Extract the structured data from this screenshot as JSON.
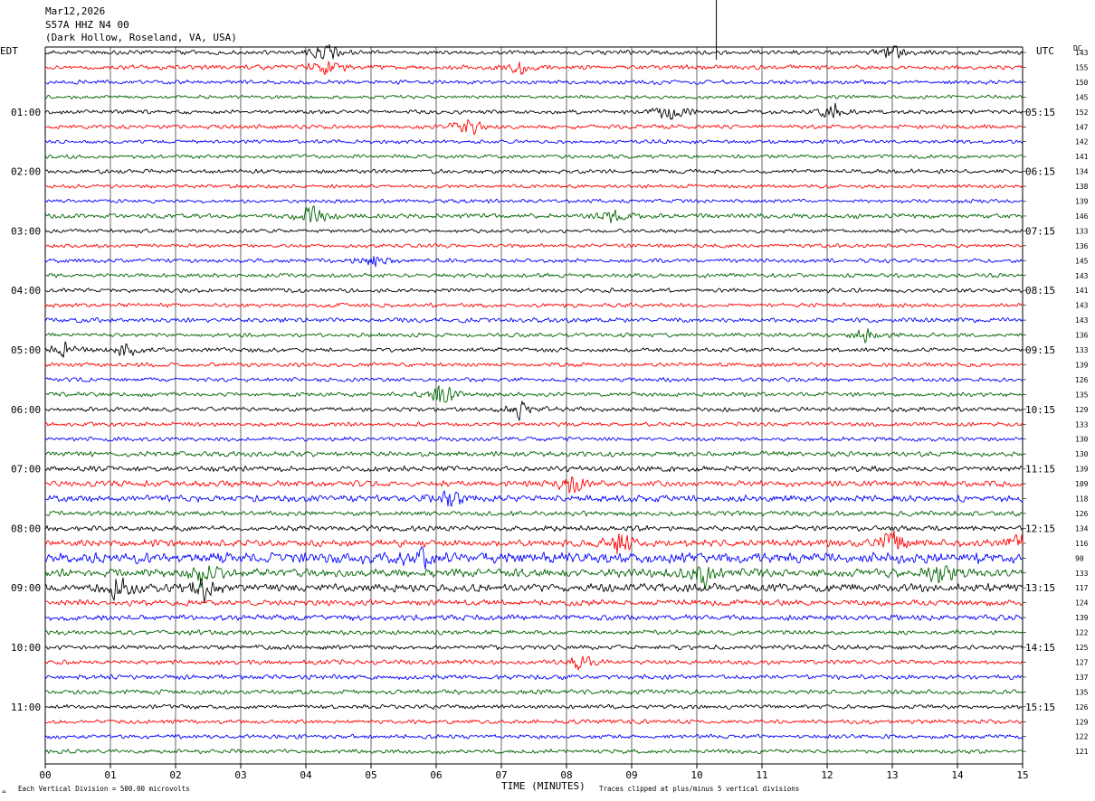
{
  "header": {
    "date": "Mar12,2026",
    "station": "S57A HHZ N4 00",
    "location": "(Dark Hollow, Roseland, VA, USA)"
  },
  "left_zone_label": "EDT",
  "right_zone_label": "UTC",
  "dc_label": "DC",
  "footer": {
    "scale_note": "Each Vertical Division =  500.00 microvolts",
    "xlabel": "TIME (MINUTES)",
    "clip_note": "Traces clipped at plus/minus 5 vertical divisions",
    "corner_mark": "≈"
  },
  "colors": {
    "trace_cycle": [
      "#000000",
      "#ff0000",
      "#0000ff",
      "#006400"
    ],
    "grid": "#000000"
  },
  "chart_data": {
    "type": "line",
    "subtype": "helicorder",
    "xlabel": "TIME (MINUTES)",
    "xlim": [
      0,
      15
    ],
    "x_ticks": [
      "00",
      "01",
      "02",
      "03",
      "04",
      "05",
      "06",
      "07",
      "08",
      "09",
      "10",
      "11",
      "12",
      "13",
      "14",
      "15"
    ],
    "row_minutes": 15,
    "row_count": 48,
    "left_hour_labels": [
      "01:00",
      "02:00",
      "03:00",
      "04:00",
      "05:00",
      "06:00",
      "07:00",
      "08:00",
      "09:00",
      "10:00",
      "11:00"
    ],
    "right_hour_labels": [
      "05:15",
      "06:15",
      "07:15",
      "08:15",
      "09:15",
      "10:15",
      "11:15",
      "12:15",
      "13:15",
      "14:15",
      "15:15"
    ],
    "dc_offsets": [
      143,
      155,
      150,
      145,
      152,
      147,
      142,
      141,
      134,
      138,
      139,
      146,
      133,
      136,
      145,
      143,
      141,
      143,
      143,
      136,
      133,
      139,
      126,
      135,
      129,
      133,
      130,
      130,
      139,
      109,
      118,
      126,
      134,
      116,
      90,
      133,
      117,
      124,
      139,
      122,
      125,
      127,
      137,
      135,
      126,
      129,
      122,
      121
    ],
    "row_activity": [
      1.0,
      1.1,
      1.0,
      0.9,
      1.0,
      1.0,
      0.9,
      0.9,
      1.0,
      0.9,
      0.9,
      1.1,
      0.9,
      0.9,
      1.0,
      1.0,
      1.0,
      1.0,
      1.1,
      1.0,
      1.0,
      1.0,
      1.0,
      1.0,
      1.1,
      1.0,
      1.0,
      1.2,
      1.3,
      1.4,
      1.6,
      1.2,
      1.3,
      1.7,
      2.6,
      2.0,
      1.9,
      1.4,
      1.4,
      1.1,
      1.1,
      1.1,
      1.1,
      1.1,
      1.0,
      1.0,
      1.0,
      1.0
    ],
    "events": [
      {
        "row": 0,
        "minute": 4.3,
        "amp": 2.0
      },
      {
        "row": 0,
        "minute": 13.0,
        "amp": 1.8
      },
      {
        "row": 1,
        "minute": 4.3,
        "amp": 2.5
      },
      {
        "row": 1,
        "minute": 7.3,
        "amp": 1.6
      },
      {
        "row": 4,
        "minute": 9.6,
        "amp": 2.2
      },
      {
        "row": 4,
        "minute": 12.1,
        "amp": 2.0
      },
      {
        "row": 5,
        "minute": 6.5,
        "amp": 2.0
      },
      {
        "row": 11,
        "minute": 4.1,
        "amp": 2.8
      },
      {
        "row": 11,
        "minute": 8.7,
        "amp": 2.2
      },
      {
        "row": 14,
        "minute": 5.0,
        "amp": 1.8
      },
      {
        "row": 19,
        "minute": 12.6,
        "amp": 1.8
      },
      {
        "row": 20,
        "minute": 0.3,
        "amp": 1.8
      },
      {
        "row": 20,
        "minute": 1.2,
        "amp": 2.0
      },
      {
        "row": 23,
        "minute": 6.05,
        "amp": 3.0
      },
      {
        "row": 24,
        "minute": 7.3,
        "amp": 2.4
      },
      {
        "row": 29,
        "minute": 8.05,
        "amp": 2.4
      },
      {
        "row": 30,
        "minute": 6.2,
        "amp": 2.6
      },
      {
        "row": 33,
        "minute": 8.8,
        "amp": 2.5
      },
      {
        "row": 33,
        "minute": 13.0,
        "amp": 3.0
      },
      {
        "row": 33,
        "minute": 14.9,
        "amp": 2.5
      },
      {
        "row": 34,
        "minute": 5.8,
        "amp": 2.4
      },
      {
        "row": 35,
        "minute": 2.4,
        "amp": 2.8
      },
      {
        "row": 35,
        "minute": 10.1,
        "amp": 3.0
      },
      {
        "row": 35,
        "minute": 13.7,
        "amp": 2.5
      },
      {
        "row": 36,
        "minute": 1.1,
        "amp": 2.8
      },
      {
        "row": 36,
        "minute": 2.4,
        "amp": 3.2
      },
      {
        "row": 41,
        "minute": 8.2,
        "amp": 1.8
      }
    ],
    "clipped_spike": {
      "row": 0,
      "minute": 10.3
    }
  }
}
